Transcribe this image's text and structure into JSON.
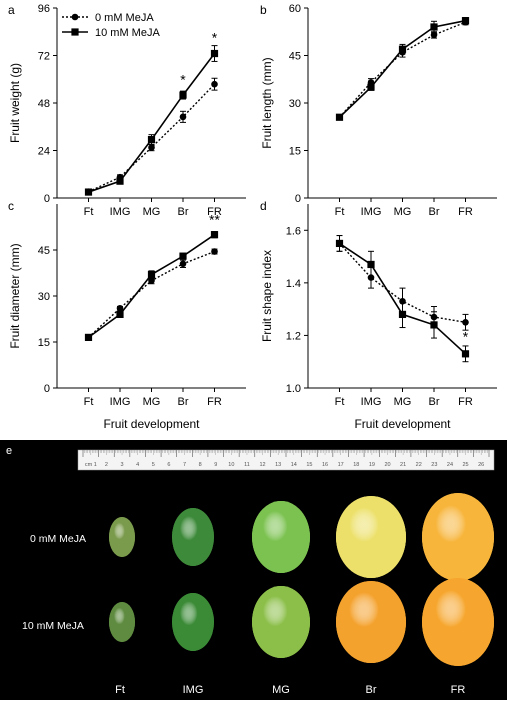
{
  "chart_data": [
    {
      "panel": "a",
      "type": "line",
      "categories": [
        "Ft",
        "IMG",
        "MG",
        "Br",
        "FR"
      ],
      "ylabel": "Fruit weight (g)",
      "xlabel": "",
      "ylim": [
        0,
        96
      ],
      "yticks": [
        0,
        24,
        48,
        72,
        96
      ],
      "legend": "top-left",
      "series": [
        {
          "name": "0 mM MeJA",
          "marker": "circle",
          "dash": "dotted",
          "values": [
            3.2,
            10.5,
            25.5,
            41,
            57.5
          ],
          "errors": [
            0.6,
            1.2,
            1.6,
            2.8,
            3
          ]
        },
        {
          "name": "10 mM MeJA",
          "marker": "square",
          "dash": "solid",
          "values": [
            3,
            8.5,
            29.5,
            52,
            73
          ],
          "errors": [
            0.6,
            1,
            2.5,
            2,
            4
          ]
        }
      ],
      "annotations": [
        {
          "category": "Br",
          "text": "*",
          "value": 60
        },
        {
          "category": "FR",
          "text": "*",
          "value": 81
        }
      ]
    },
    {
      "panel": "b",
      "type": "line",
      "categories": [
        "Ft",
        "IMG",
        "MG",
        "Br",
        "FR"
      ],
      "ylabel": "Fruit length (mm)",
      "xlabel": "",
      "ylim": [
        0,
        60
      ],
      "yticks": [
        0,
        15,
        30,
        45,
        60
      ],
      "series": [
        {
          "name": "0 mM MeJA",
          "marker": "circle",
          "dash": "dotted",
          "values": [
            25.5,
            36.5,
            46,
            51.5,
            55.5
          ],
          "errors": [
            0.4,
            1.2,
            1.5,
            1,
            0.8
          ]
        },
        {
          "name": "10 mM MeJA",
          "marker": "square",
          "dash": "solid",
          "values": [
            25.5,
            35,
            47,
            54,
            56
          ],
          "errors": [
            0.4,
            1,
            1.5,
            1.8,
            1
          ]
        }
      ],
      "annotations": []
    },
    {
      "panel": "c",
      "type": "line",
      "categories": [
        "Ft",
        "IMG",
        "MG",
        "Br",
        "FR"
      ],
      "ylabel": "Fruit diameter (mm)",
      "xlabel": "Fruit development",
      "ylim": [
        0,
        60
      ],
      "yticks": [
        0,
        15,
        30,
        45
      ],
      "series": [
        {
          "name": "0 mM MeJA",
          "marker": "circle",
          "dash": "dotted",
          "values": [
            16.5,
            26,
            35,
            40.5,
            44.5
          ],
          "errors": [
            0.4,
            0.6,
            1,
            1.2,
            0.8
          ]
        },
        {
          "name": "10 mM MeJA",
          "marker": "square",
          "dash": "solid",
          "values": [
            16.5,
            24,
            37,
            43,
            50
          ],
          "errors": [
            0.4,
            0.8,
            1.2,
            0.8,
            1
          ]
        }
      ],
      "annotations": [
        {
          "category": "FR",
          "text": "**",
          "value": 55
        }
      ]
    },
    {
      "panel": "d",
      "type": "line",
      "categories": [
        "Ft",
        "IMG",
        "MG",
        "Br",
        "FR"
      ],
      "ylabel": "Fruit shape index",
      "xlabel": "Fruit development",
      "ylim": [
        1.0,
        1.7
      ],
      "yticks": [
        1.0,
        1.2,
        1.4,
        1.6
      ],
      "series": [
        {
          "name": "0 mM MeJA",
          "marker": "circle",
          "dash": "dotted",
          "values": [
            1.55,
            1.42,
            1.33,
            1.27,
            1.25
          ],
          "errors": [
            0.03,
            0.04,
            0.05,
            0.04,
            0.03
          ]
        },
        {
          "name": "10 mM MeJA",
          "marker": "square",
          "dash": "solid",
          "values": [
            1.55,
            1.47,
            1.28,
            1.24,
            1.13
          ],
          "errors": [
            0.03,
            0.05,
            0.05,
            0.05,
            0.03
          ]
        }
      ],
      "annotations": [
        {
          "category": "FR",
          "text": "*",
          "value": 1.195
        }
      ]
    }
  ],
  "photo": {
    "panel_label": "e",
    "ruler_numbers": [
      "cm 1",
      "2",
      "3",
      "4",
      "5",
      "6",
      "7",
      "8",
      "9",
      "10",
      "11",
      "12",
      "13",
      "14",
      "15",
      "16",
      "17",
      "18",
      "19",
      "20",
      "21",
      "22",
      "23",
      "24",
      "25",
      "26"
    ],
    "row_labels": [
      "0 mM MeJA",
      "10 mM MeJA"
    ],
    "stage_labels": [
      "Ft",
      "IMG",
      "MG",
      "Br",
      "FR"
    ],
    "colors": {
      "row0": [
        "#7a9a4c",
        "#3d8a3a",
        "#7cc251",
        "#ece06a",
        "#f7b53c"
      ],
      "row1": [
        "#5e8b40",
        "#3a8a36",
        "#8cbf4a",
        "#f4a22e",
        "#f6a62e"
      ]
    }
  }
}
